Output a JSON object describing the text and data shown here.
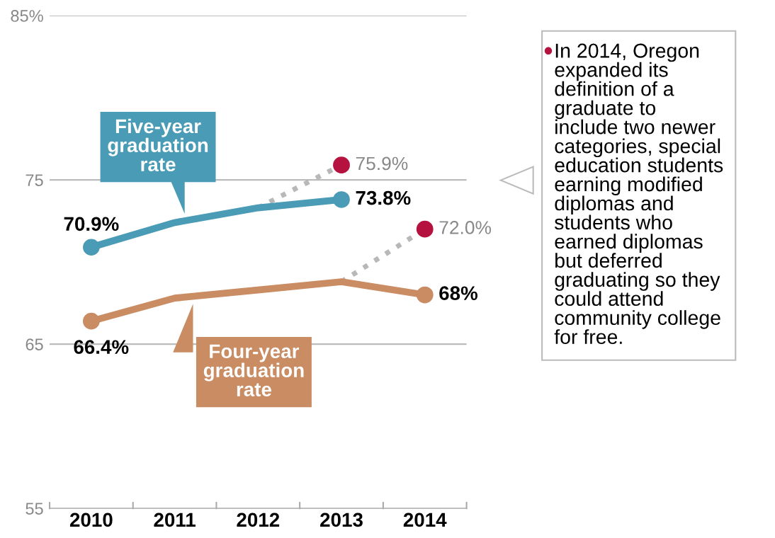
{
  "chart_data": {
    "type": "line",
    "categories": [
      "2010",
      "2011",
      "2012",
      "2013",
      "2014"
    ],
    "series": [
      {
        "name": "Five-year graduation rate",
        "color": "#4a9bb5",
        "values": [
          70.9,
          72.4,
          73.3,
          73.8,
          null
        ],
        "value_labels": [
          "70.9%",
          null,
          null,
          "73.8%",
          null
        ],
        "marker": "circle",
        "line_style": "solid"
      },
      {
        "name": "Four-year graduation rate",
        "color": "#c98c63",
        "values": [
          66.4,
          67.8,
          68.3,
          68.8,
          68
        ],
        "value_labels": [
          "66.4%",
          null,
          null,
          null,
          "68%"
        ],
        "marker": "none",
        "line_style": "solid"
      },
      {
        "type": "scatter",
        "color": "#c98c63",
        "values": [
          66.4,
          null,
          null,
          null,
          68
        ],
        "marker": "circle"
      },
      {
        "color": "#b8b8b8",
        "values": [
          null,
          null,
          73.3,
          75.9,
          null
        ],
        "marker": "none",
        "line_style": "dotted"
      },
      {
        "color": "#b8b8b8",
        "values": [
          null,
          null,
          null,
          68.8,
          72.0
        ],
        "marker": "none",
        "line_style": "dotted"
      },
      {
        "type": "scatter",
        "color": "#b5123f",
        "values": [
          null,
          null,
          null,
          75.9,
          72.0
        ],
        "value_labels": [
          null,
          null,
          null,
          "75.9%",
          "72.0%"
        ],
        "marker": "circle"
      }
    ],
    "ylim": [
      55,
      85
    ],
    "yticks": [
      55,
      65,
      75,
      {
        "value": 85,
        "label": "85%"
      }
    ],
    "grid": "y",
    "legend": false,
    "annotations": [
      "In 2014, Oregon\nexpanded its\ndefinition of a\ngraduate to\ninclude two newer\ncategories, special\neducation students\nearning modified\ndiplomas and\nstudents who\nearned diplomas\nbut deferred\ngraduating so they\ncould attend\ncommunity college\nfor free."
    ]
  }
}
